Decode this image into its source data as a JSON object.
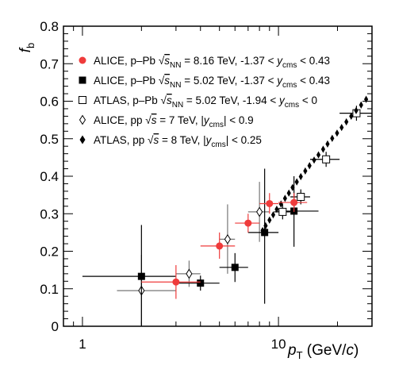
{
  "chart_data": {
    "type": "scatter",
    "ylabel": "f_b",
    "xlabel": "p_T (GeV/c)",
    "x_scale": "log",
    "xlim": [
      0.8,
      30
    ],
    "ylim": [
      0,
      0.8
    ],
    "x_ticks": [
      "1",
      "10"
    ],
    "y_ticks": [
      "0",
      "0.1",
      "0.2",
      "0.3",
      "0.4",
      "0.5",
      "0.6",
      "0.7",
      "0.8"
    ],
    "legend_position": "top-left",
    "series": [
      {
        "name": "ALICE, p–Pb √s_NN = 8.16 TeV, -1.37 < y_cms < 0.43",
        "marker": "filled-circle",
        "color": "#ef3b3b",
        "points": [
          {
            "x": 3.0,
            "y": 0.118,
            "xerr": [
              2.0,
              4.0
            ],
            "yerr": [
              0.073,
              0.163
            ]
          },
          {
            "x": 5.0,
            "y": 0.214,
            "xerr": [
              4.0,
              6.0
            ],
            "yerr": [
              0.18,
              0.25
            ]
          },
          {
            "x": 7.0,
            "y": 0.275,
            "xerr": [
              6.0,
              8.0
            ],
            "yerr": [
              0.25,
              0.3
            ]
          },
          {
            "x": 9.0,
            "y": 0.327,
            "xerr": [
              8.0,
              10.0
            ],
            "yerr": [
              0.3,
              0.355
            ]
          },
          {
            "x": 12.0,
            "y": 0.33,
            "xerr": [
              10.0,
              14.0
            ],
            "yerr": [
              0.305,
              0.355
            ]
          }
        ]
      },
      {
        "name": "ALICE, p–Pb √s_NN = 5.02 TeV, -1.37 < y_cms < 0.43",
        "marker": "filled-square",
        "color": "#000000",
        "points": [
          {
            "x": 2.0,
            "y": 0.133,
            "xerr": [
              1.0,
              3.0
            ],
            "yerr": [
              0.0,
              0.27
            ]
          },
          {
            "x": 4.0,
            "y": 0.115,
            "xerr": [
              3.0,
              5.0
            ],
            "yerr": [
              0.095,
              0.135
            ]
          },
          {
            "x": 6.0,
            "y": 0.157,
            "xerr": [
              5.0,
              7.0
            ],
            "yerr": [
              0.118,
              0.195
            ]
          },
          {
            "x": 8.5,
            "y": 0.25,
            "xerr": [
              7.0,
              10.0
            ],
            "yerr": [
              0.06,
              0.42
            ]
          },
          {
            "x": 12.0,
            "y": 0.307,
            "xerr": [
              10.0,
              16.0
            ],
            "yerr": [
              0.212,
              0.4
            ]
          }
        ]
      },
      {
        "name": "ATLAS, p–Pb √s_NN = 5.02 TeV, -1.94 < y_cms < 0",
        "marker": "open-square",
        "color": "#000000",
        "points": [
          {
            "x": 10.5,
            "y": 0.305,
            "xerr": [
              9.5,
              11.5
            ],
            "yerr": [
              0.285,
              0.325
            ]
          },
          {
            "x": 13.0,
            "y": 0.345,
            "xerr": [
              11.5,
              14.5
            ],
            "yerr": [
              0.325,
              0.365
            ]
          },
          {
            "x": 17.5,
            "y": 0.445,
            "xerr": [
              14.5,
              20.5
            ],
            "yerr": [
              0.425,
              0.465
            ]
          },
          {
            "x": 25.0,
            "y": 0.568,
            "xerr": [
              20.5,
              30.0
            ],
            "yerr": [
              0.548,
              0.588
            ]
          }
        ]
      },
      {
        "name": "ALICE, pp √s = 7 TeV, |y_cms| < 0.9",
        "marker": "open-diamond",
        "color": "#000000",
        "points": [
          {
            "x": 2.0,
            "y": 0.095,
            "xerr": [
              1.5,
              3.0
            ],
            "yerr": [
              0.0,
              0.19
            ]
          },
          {
            "x": 3.5,
            "y": 0.14,
            "xerr": [
              3.0,
              4.0
            ],
            "yerr": [
              0.105,
              0.175
            ]
          },
          {
            "x": 5.5,
            "y": 0.232,
            "xerr": [
              5.0,
              6.0
            ],
            "yerr": [
              0.14,
              0.325
            ]
          },
          {
            "x": 8.0,
            "y": 0.305,
            "xerr": [
              7.0,
              9.0
            ],
            "yerr": [
              0.225,
              0.385
            ]
          }
        ]
      },
      {
        "name": "ATLAS, pp √s = 8 TeV, |y_cms| < 0.25",
        "marker": "filled-diamond",
        "color": "#000000",
        "points": [
          {
            "x": 8.3,
            "y": 0.255
          },
          {
            "x": 8.6,
            "y": 0.268
          },
          {
            "x": 9.0,
            "y": 0.283
          },
          {
            "x": 9.4,
            "y": 0.297
          },
          {
            "x": 9.8,
            "y": 0.312
          },
          {
            "x": 10.3,
            "y": 0.326
          },
          {
            "x": 10.8,
            "y": 0.341
          },
          {
            "x": 11.3,
            "y": 0.355
          },
          {
            "x": 11.8,
            "y": 0.37
          },
          {
            "x": 12.4,
            "y": 0.385
          },
          {
            "x": 13.0,
            "y": 0.399
          },
          {
            "x": 13.7,
            "y": 0.414
          },
          {
            "x": 14.4,
            "y": 0.428
          },
          {
            "x": 15.2,
            "y": 0.443
          },
          {
            "x": 16.0,
            "y": 0.457
          },
          {
            "x": 16.9,
            "y": 0.472
          },
          {
            "x": 17.8,
            "y": 0.486
          },
          {
            "x": 18.8,
            "y": 0.501
          },
          {
            "x": 19.9,
            "y": 0.515
          },
          {
            "x": 21.0,
            "y": 0.53
          },
          {
            "x": 22.2,
            "y": 0.545
          },
          {
            "x": 23.5,
            "y": 0.56
          },
          {
            "x": 24.9,
            "y": 0.575
          },
          {
            "x": 26.4,
            "y": 0.59
          },
          {
            "x": 28.0,
            "y": 0.605
          }
        ]
      }
    ],
    "legend": [
      {
        "pre": "ALICE, p–Pb ",
        "sqrt": "s",
        "sqrt_sub": "NN",
        "energy": " = 8.16 TeV,  -1.37 < ",
        "y_var": "y",
        "y_sub": "cms",
        "post": " < 0.43"
      },
      {
        "pre": "ALICE, p–Pb ",
        "sqrt": "s",
        "sqrt_sub": "NN",
        "energy": " = 5.02 TeV,  -1.37 < ",
        "y_var": "y",
        "y_sub": "cms",
        "post": " < 0.43"
      },
      {
        "pre": "ATLAS, p–Pb ",
        "sqrt": "s",
        "sqrt_sub": "NN",
        "energy": " = 5.02 TeV,  -1.94 < ",
        "y_var": "y",
        "y_sub": "cms",
        "post": " < 0"
      },
      {
        "pre": "ALICE, pp ",
        "sqrt": "s",
        "sqrt_sub": "",
        "energy": " = 7 TeV,  |",
        "y_var": "y",
        "y_sub": "cms",
        "post": "| < 0.9"
      },
      {
        "pre": "ATLAS, pp ",
        "sqrt": "s",
        "sqrt_sub": "",
        "energy": " = 8 TeV,  |",
        "y_var": "y",
        "y_sub": "cms",
        "post": "| < 0.25"
      }
    ]
  }
}
